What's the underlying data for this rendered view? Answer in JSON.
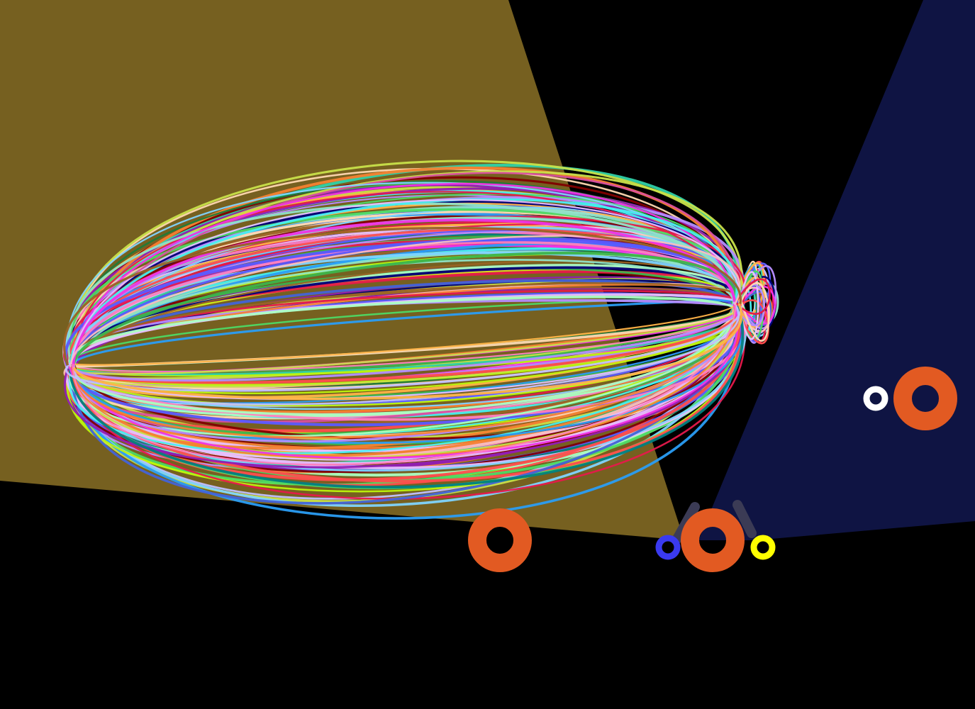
{
  "scene": {
    "background_color": "#000000",
    "trajectory_count": 220,
    "light_zones": [
      {
        "name": "left-light-cone",
        "color": "#766020"
      },
      {
        "name": "right-light-cone",
        "color": "#0f1443"
      }
    ],
    "markers": [
      {
        "name": "orange-ring-marker",
        "color": "#e25a22"
      },
      {
        "name": "orange-ring-marker",
        "color": "#e25a22"
      },
      {
        "name": "orange-ring-marker",
        "color": "#e25a22"
      },
      {
        "name": "blue-ring-marker",
        "color": "#3a3af0"
      },
      {
        "name": "yellow-ring-marker",
        "color": "#ffff00"
      },
      {
        "name": "white-ring-marker",
        "color": "#ffffff"
      }
    ],
    "connector_color": "#3b3b55"
  }
}
